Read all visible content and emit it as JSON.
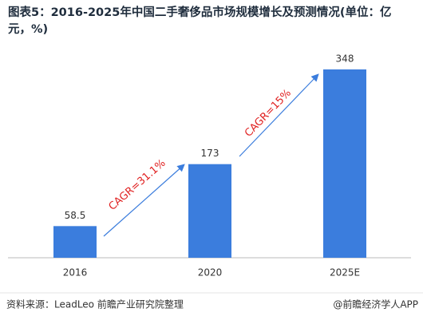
{
  "chart_data": {
    "type": "bar",
    "title": "图表5：2016-2025年中国二手奢侈品市场规模增长及预测情况(单位：亿元，%)",
    "categories": [
      "2016",
      "2020",
      "2025E"
    ],
    "values": [
      58.5,
      173,
      348
    ],
    "color": "#3b7ddd",
    "annotations": [
      {
        "text": "CAGR=31.1%"
      },
      {
        "text": "CAGR=15%"
      }
    ],
    "source": "资料来源：LeadLeo 前瞻产业研究院整理",
    "credit": "@前瞻经济学人APP"
  }
}
